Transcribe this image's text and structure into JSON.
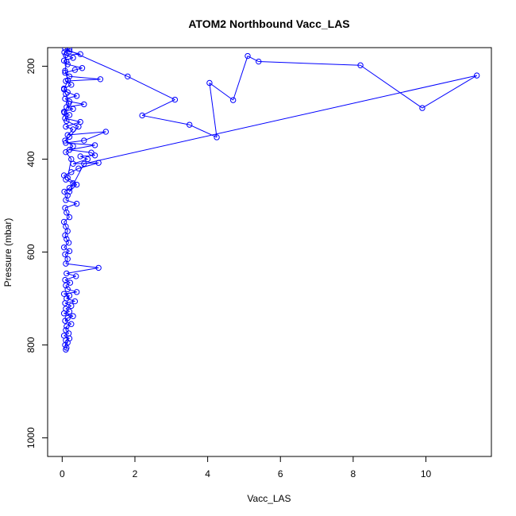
{
  "chart_data": {
    "type": "line",
    "title": "ATOM2 Northbound Vacc_LAS",
    "xlabel": "Vacc_LAS",
    "ylabel": "Pressure (mbar)",
    "xlim": [
      -0.4,
      11.8
    ],
    "ylim": [
      1040,
      160
    ],
    "y_reversed": true,
    "grid": false,
    "x_ticks": [
      0,
      2,
      4,
      6,
      8,
      10
    ],
    "x_tick_labels": [
      "0",
      "2",
      "4",
      "6",
      "8",
      "10"
    ],
    "y_ticks": [
      200,
      400,
      600,
      800,
      1000
    ],
    "y_tick_labels": [
      "200",
      "400",
      "600",
      "800",
      "1000"
    ],
    "series": [
      {
        "color": "#0000ff",
        "marker": "open-circle",
        "points": [
          [
            0.1,
            810
          ],
          [
            0.12,
            806
          ],
          [
            0.08,
            800
          ],
          [
            0.15,
            795
          ],
          [
            0.1,
            790
          ],
          [
            0.2,
            786
          ],
          [
            0.05,
            780
          ],
          [
            0.18,
            775
          ],
          [
            0.1,
            768
          ],
          [
            0.12,
            760
          ],
          [
            0.25,
            755
          ],
          [
            0.08,
            748
          ],
          [
            0.15,
            742
          ],
          [
            0.3,
            738
          ],
          [
            0.05,
            732
          ],
          [
            0.2,
            728
          ],
          [
            0.1,
            722
          ],
          [
            0.25,
            716
          ],
          [
            0.08,
            710
          ],
          [
            0.35,
            706
          ],
          [
            0.12,
            700
          ],
          [
            0.2,
            694
          ],
          [
            0.05,
            690
          ],
          [
            0.4,
            686
          ],
          [
            0.15,
            680
          ],
          [
            0.1,
            672
          ],
          [
            0.22,
            666
          ],
          [
            0.08,
            660
          ],
          [
            0.38,
            652
          ],
          [
            0.12,
            646
          ],
          [
            1.0,
            634
          ],
          [
            0.1,
            625
          ],
          [
            0.15,
            615
          ],
          [
            0.08,
            605
          ],
          [
            0.2,
            598
          ],
          [
            0.05,
            590
          ],
          [
            0.18,
            580
          ],
          [
            0.12,
            572
          ],
          [
            0.08,
            564
          ],
          [
            0.15,
            555
          ],
          [
            0.1,
            545
          ],
          [
            0.05,
            535
          ],
          [
            0.2,
            525
          ],
          [
            0.12,
            515
          ],
          [
            0.08,
            505
          ],
          [
            0.4,
            496
          ],
          [
            0.1,
            488
          ],
          [
            0.15,
            478
          ],
          [
            0.06,
            470
          ],
          [
            0.2,
            462
          ],
          [
            0.3,
            452
          ],
          [
            0.1,
            444
          ],
          [
            0.05,
            435
          ],
          [
            0.25,
            428
          ],
          [
            0.45,
            420
          ],
          [
            1.0,
            408
          ],
          [
            0.3,
            410
          ],
          [
            0.7,
            400
          ],
          [
            0.5,
            394
          ],
          [
            0.9,
            392
          ],
          [
            0.8,
            386
          ],
          [
            0.2,
            380
          ],
          [
            0.9,
            370
          ],
          [
            0.1,
            365
          ],
          [
            0.6,
            360
          ],
          [
            1.2,
            341
          ],
          [
            0.15,
            348
          ],
          [
            0.3,
            336
          ],
          [
            0.1,
            330
          ],
          [
            0.5,
            320
          ],
          [
            0.08,
            312
          ],
          [
            0.2,
            305
          ],
          [
            0.05,
            298
          ],
          [
            0.3,
            292
          ],
          [
            0.12,
            288
          ],
          [
            0.6,
            282
          ],
          [
            0.2,
            276
          ],
          [
            0.08,
            270
          ],
          [
            0.4,
            264
          ],
          [
            0.15,
            256
          ],
          [
            0.05,
            248
          ],
          [
            0.25,
            240
          ],
          [
            0.1,
            232
          ],
          [
            1.05,
            228
          ],
          [
            0.2,
            222
          ],
          [
            0.08,
            214
          ],
          [
            0.35,
            208
          ],
          [
            0.55,
            204
          ],
          [
            0.15,
            196
          ],
          [
            0.05,
            188
          ],
          [
            0.3,
            182
          ],
          [
            0.1,
            176
          ],
          [
            0.5,
            174
          ],
          [
            0.2,
            168
          ],
          [
            0.08,
            162
          ],
          [
            1.8,
            222
          ],
          [
            3.1,
            272
          ],
          [
            2.2,
            306
          ],
          [
            3.5,
            326
          ],
          [
            4.25,
            353
          ],
          [
            4.05,
            236
          ],
          [
            4.7,
            273
          ],
          [
            5.1,
            178
          ],
          [
            5.4,
            190
          ],
          [
            8.2,
            198
          ],
          [
            9.9,
            290
          ],
          [
            11.4,
            220
          ],
          [
            0.6,
            410
          ],
          [
            0.2,
            470
          ],
          [
            0.4,
            455
          ],
          [
            0.15,
            440
          ],
          [
            0.25,
            400
          ],
          [
            0.1,
            385
          ],
          [
            0.3,
            372
          ],
          [
            0.08,
            360
          ],
          [
            0.2,
            352
          ],
          [
            0.45,
            330
          ],
          [
            0.12,
            318
          ],
          [
            0.06,
            300
          ],
          [
            0.18,
            280
          ],
          [
            0.1,
            260
          ],
          [
            0.05,
            250
          ],
          [
            0.16,
            230
          ],
          [
            0.08,
            210
          ],
          [
            0.12,
            190
          ],
          [
            0.06,
            170
          ],
          [
            0.2,
            164
          ]
        ]
      }
    ]
  }
}
